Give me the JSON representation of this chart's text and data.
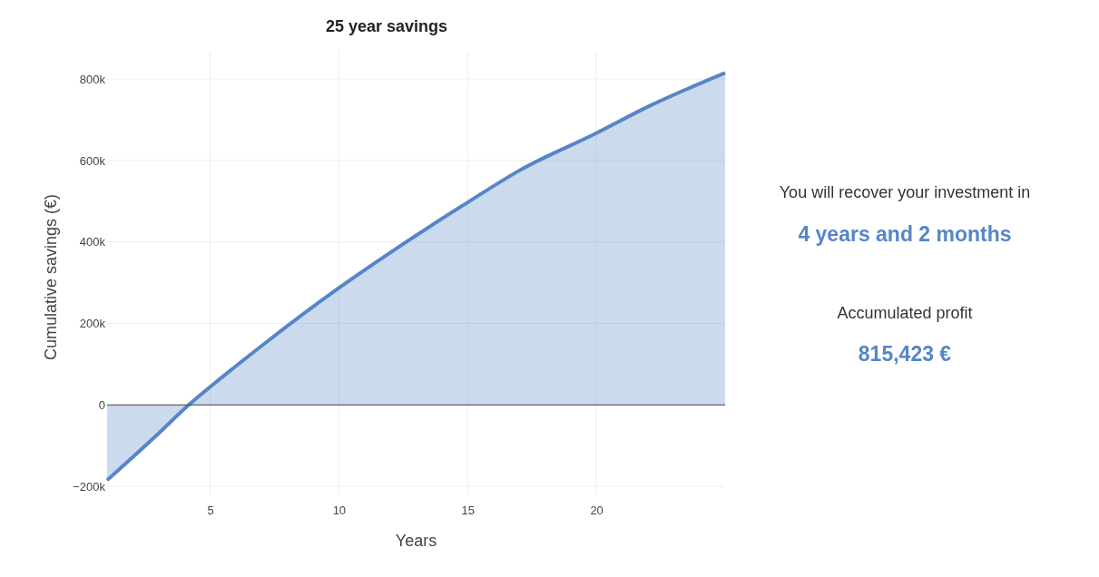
{
  "chart_data": [
    {
      "type": "area",
      "title": "25 year savings",
      "xlabel": "Years",
      "ylabel": "Cumulative savings (€)",
      "x": [
        1,
        3,
        4.17,
        5,
        7,
        10,
        12,
        15,
        17,
        20,
        22,
        25
      ],
      "series": [
        {
          "color": "#5586c8",
          "values": [
            -185000,
            -70000,
            0,
            44000,
            145000,
            287000,
            374000,
            497000,
            575000,
            667000,
            732000,
            815000
          ]
        }
      ],
      "xlim": [
        1,
        25
      ],
      "xticks": [
        5,
        10,
        15,
        20
      ],
      "ylim": [
        -222000,
        867000
      ],
      "yticks": [
        {
          "value": -200000,
          "label": "−200k"
        },
        {
          "value": 0,
          "label": "0"
        },
        {
          "value": 200000,
          "label": "200k"
        },
        {
          "value": 400000,
          "label": "400k"
        },
        {
          "value": 600000,
          "label": "600k"
        },
        {
          "value": 800000,
          "label": "800k"
        }
      ],
      "grid": true
    },
    {
      "type": "other",
      "annotations": [
        "You will recover your investment in",
        "4 years and 2 months",
        "Accumulated profit",
        "815,423 €"
      ]
    }
  ]
}
